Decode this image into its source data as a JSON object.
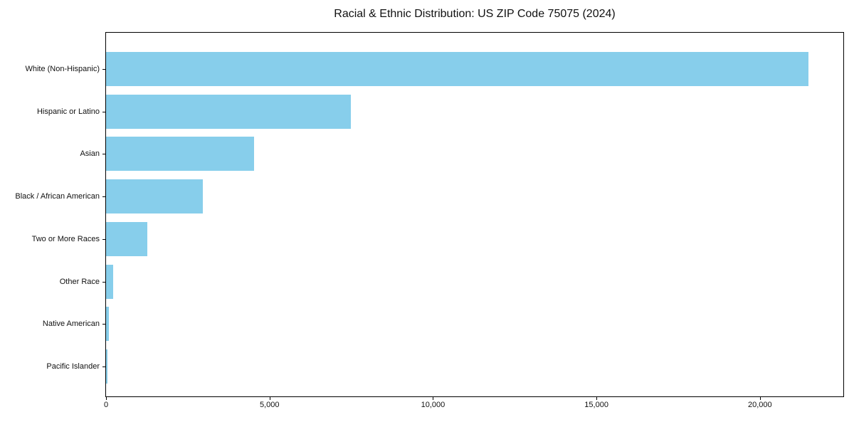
{
  "chart_data": {
    "type": "bar",
    "orientation": "horizontal",
    "title": "Racial & Ethnic Distribution: US ZIP Code 75075 (2024)",
    "categories": [
      "White (Non-Hispanic)",
      "Hispanic or Latino",
      "Asian",
      "Black / African American",
      "Two or More Races",
      "Other Race",
      "Native American",
      "Pacific Islander"
    ],
    "values": [
      21480,
      7480,
      4530,
      2970,
      1270,
      210,
      80,
      35
    ],
    "title_text_color": "#111111",
    "bar_color": "#87CEEB",
    "axis_color": "#000000",
    "background_color": "#ffffff",
    "xlabel": "",
    "ylabel": "",
    "xlim": [
      0,
      22550
    ],
    "x_ticks": [
      0,
      5000,
      10000,
      15000,
      20000
    ],
    "x_tick_labels": [
      "0",
      "5,000",
      "10,000",
      "15,000",
      "20,000"
    ],
    "grid": false,
    "legend": null
  }
}
